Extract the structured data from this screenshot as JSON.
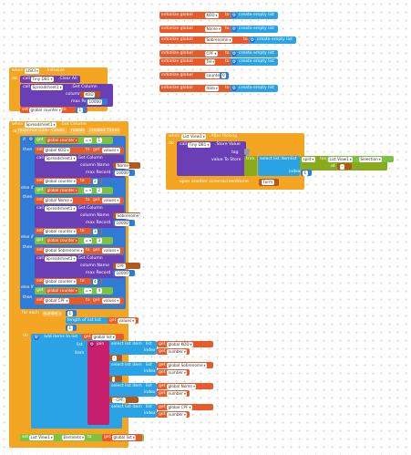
{
  "globals": [
    {
      "prefix": "initialize global",
      "name": "KOD",
      "to": "to",
      "value": "create empty list"
    },
    {
      "prefix": "initialize global",
      "name": "Nome",
      "to": "to",
      "value": "create empty list"
    },
    {
      "prefix": "initialize global",
      "name": "Sobrenome",
      "to": "to",
      "value": "create empty list"
    },
    {
      "prefix": "initialize global",
      "name": "CPF",
      "to": "to",
      "value": "create empty list"
    },
    {
      "prefix": "initialize global",
      "name": "Tel",
      "to": "to",
      "value": "create empty list"
    },
    {
      "prefix": "initialize global",
      "name": "counter",
      "to": "to",
      "value": "0"
    },
    {
      "prefix": "initialize global",
      "name": "data",
      "to": "to",
      "value": "create empty list"
    }
  ],
  "init_event": {
    "when": "when",
    "component": "LISCI",
    "event": ".Initialize",
    "do": "do",
    "call1": "call",
    "db": "Tiny DB1",
    "method1": ".Clear All",
    "call2": "call",
    "sheet": "Spreadsheet1",
    "method2": ".Get Column",
    "colname_label": "column Name",
    "colname_val": "KOD",
    "maxrec_label": "max Record",
    "maxrec_val": "10000",
    "set": "set",
    "var": "global counter",
    "to": "to",
    "val": "1"
  },
  "getcol_event": {
    "when": "when",
    "component": "Spreadsheet1",
    "event": ".Got Column",
    "params": [
      "response Code",
      "values",
      "rowids",
      "created Times"
    ],
    "do": "do",
    "if": "if",
    "then": "then",
    "else_if": "else if",
    "get": "get",
    "set": "set",
    "call": "call",
    "to": "to",
    "counter": "global counter",
    "eq": "=",
    "branches": [
      {
        "cmp": "1",
        "var": "global KOD",
        "sheet": "Spreadsheet1",
        "method": ".Get Column",
        "col_label": "column Name",
        "col": "Nome",
        "max_label": "max Record",
        "max": "10000",
        "next": "2"
      },
      {
        "cmp": "2",
        "var": "global Nome",
        "sheet": "Spreadsheet1",
        "method": ".Get Column",
        "col_label": "column Name",
        "col": "Sobrenome",
        "max_label": "max Record",
        "max": "10000",
        "next": "3"
      },
      {
        "cmp": "3",
        "var": "global Sobrenome",
        "sheet": "Spreadsheet1",
        "method": ".Get Column",
        "col_label": "column Name",
        "col": "CPF",
        "max_label": "max Record",
        "max": "10000",
        "next": "4"
      },
      {
        "cmp": "4",
        "var": "global CPF",
        "values": "values"
      }
    ],
    "for_each": "for each",
    "number": "number",
    "from": "from",
    "to2": "to",
    "by": "by",
    "one": "1",
    "length": "length of list",
    "list": "list",
    "values": "values",
    "add_items": "add items to list",
    "list_label": "list",
    "global_list": "global list",
    "item": "item",
    "join": "join",
    "select": "select list item",
    "index": "index",
    "g_kod": "global KOD",
    "g_sob": "global Sobrenome",
    "g_nome": "global Nome",
    "g_cpf": "global CPF",
    "num_var": "number",
    "s1": "-",
    "s2": " ",
    "s3": "- CPF: ",
    "final_set": "set",
    "final_comp": "List View1",
    "final_prop": "Elements",
    "final_to": "to",
    "final_get": "get",
    "final_var": "global list"
  },
  "listview_event": {
    "when": "when",
    "component": "List View1",
    "event": ".After Picking",
    "do": "do",
    "call": "call",
    "db": "Tiny DB1",
    "method": ".Store Value",
    "tag": "tag",
    "value_to_store": "value To Store",
    "trim": "trim",
    "select": "select list item",
    "list": "list",
    "split": "split",
    "text": "text",
    "lv": "List View1",
    "sel": "Selection",
    "at": "at",
    "at_val": "-",
    "index": "index",
    "index_val": "1",
    "open": "open another screen",
    "screen_name": "screenName",
    "screen_val": "Form"
  }
}
